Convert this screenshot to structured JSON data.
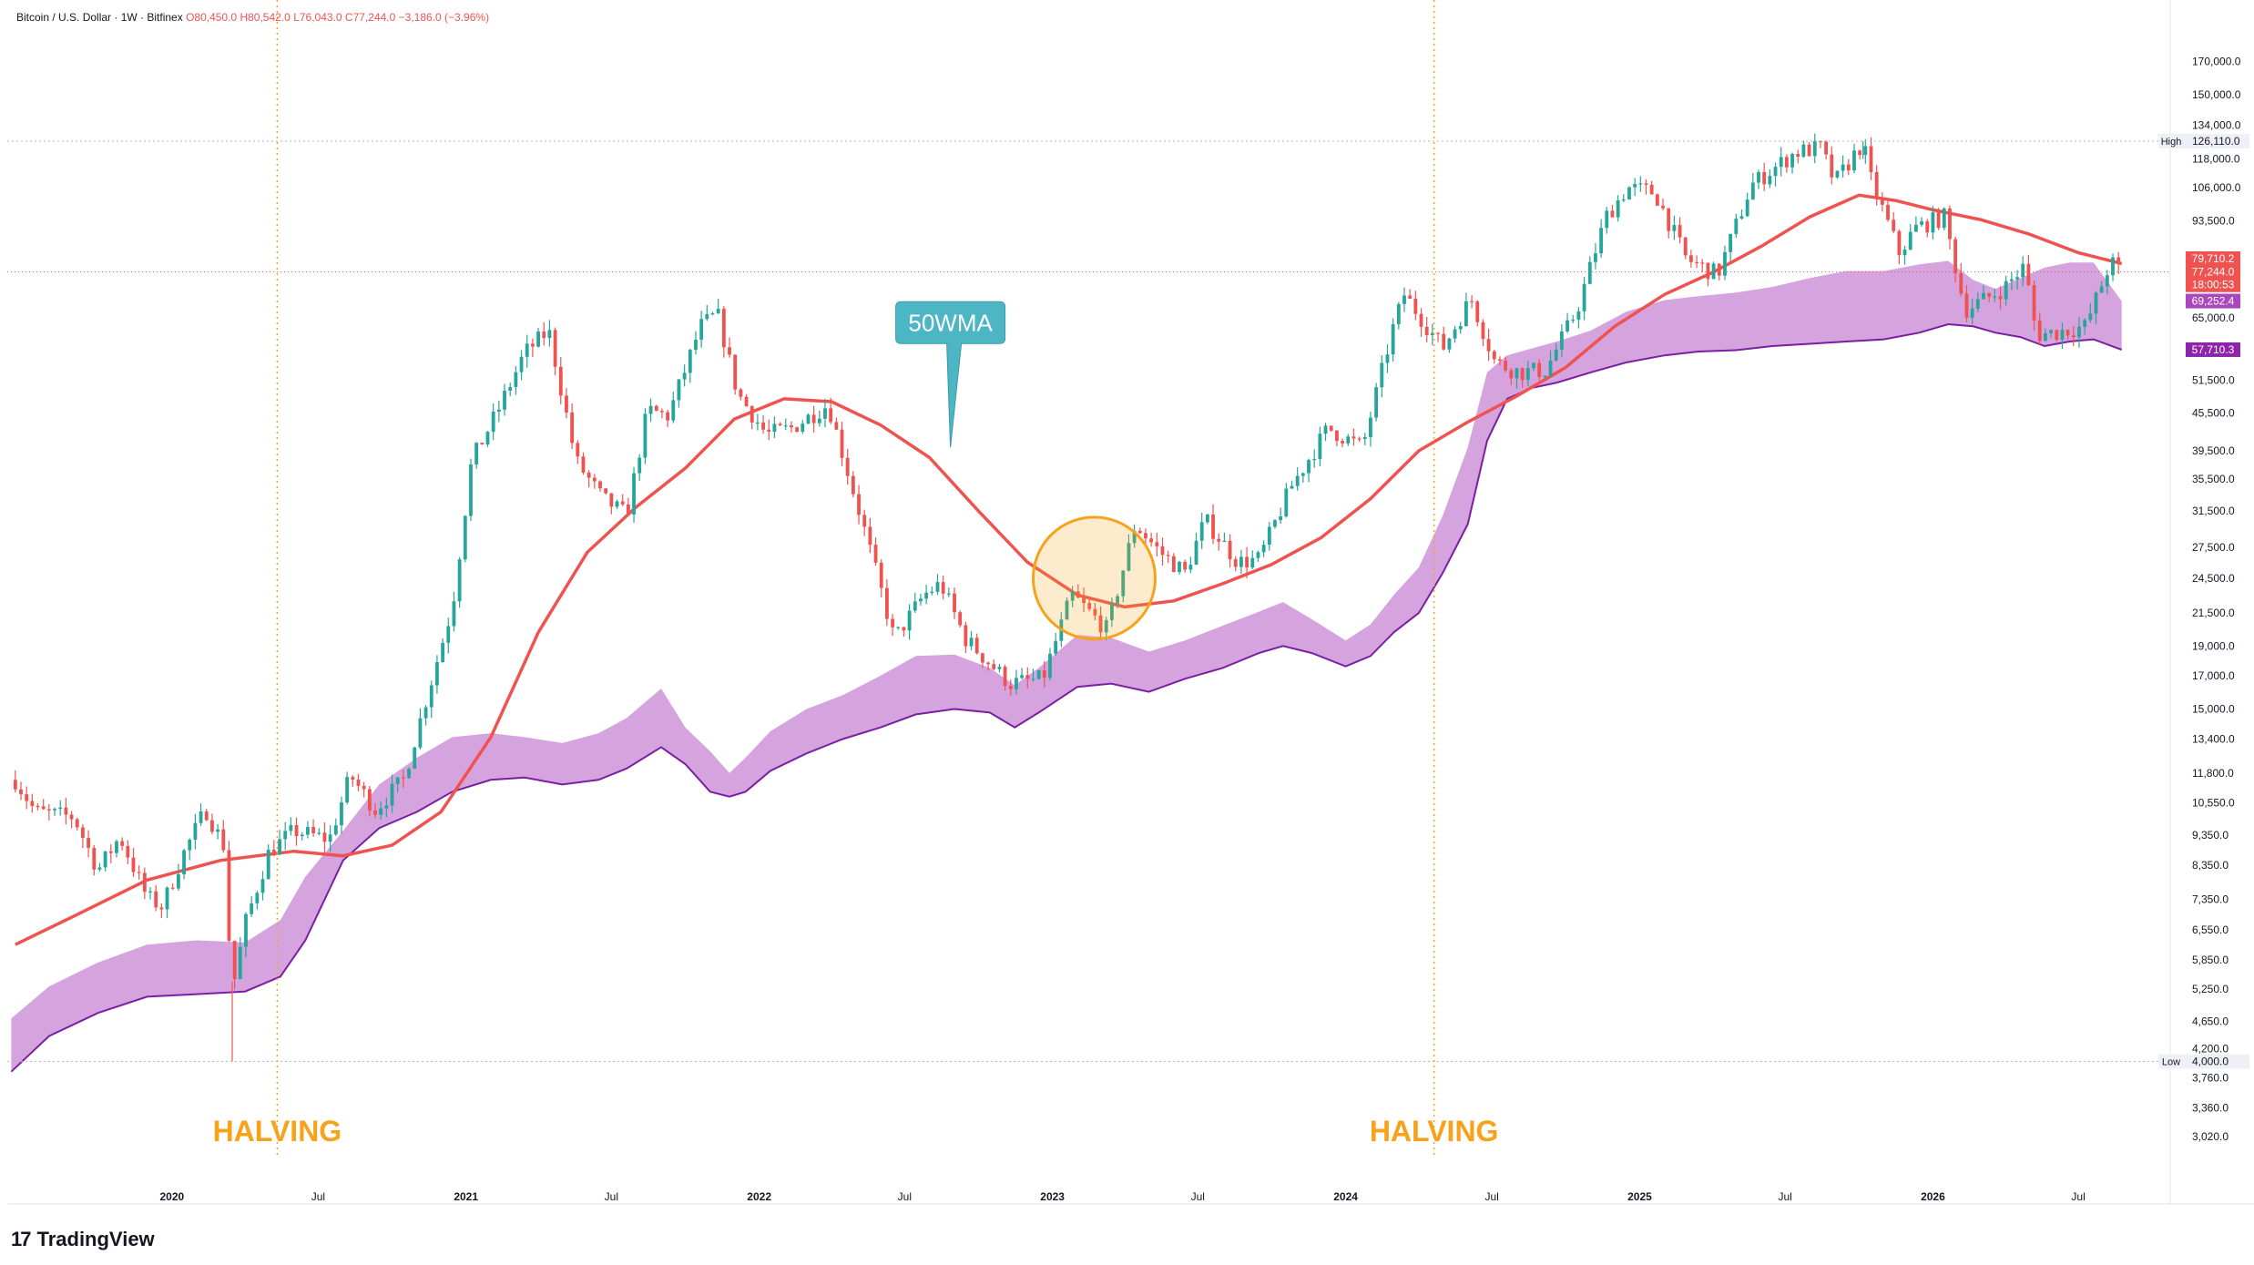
{
  "header": {
    "symbol": "Bitcoin / U.S. Dollar · 1W · Bitfinex",
    "open": "O80,450.0",
    "high": "H80,542.0",
    "low": "L76,043.0",
    "close": "C77,244.0",
    "change": "−3,186.0 (−3.96%)"
  },
  "brand": {
    "logo": "17",
    "name": "TradingView"
  },
  "colors": {
    "up": "#26a69a",
    "down": "#ef5350",
    "wma": "#ef5350",
    "band_fill": "#ce93d8",
    "band_edge": "#7b1fa2",
    "halving": "#f7a21b",
    "highlight": "#f7a21b",
    "callout": "#4db6c4"
  },
  "chart_data": {
    "type": "candlestick",
    "interval": "1W",
    "scale": "log",
    "ylim": [
      2800,
      200000
    ],
    "xlim": [
      "2019-06-10",
      "2026-10-20"
    ],
    "y_ticks": [
      "170,000.0",
      "150,000.0",
      "134,000.0",
      "118,000.0",
      "106,000.0",
      "93,500.0",
      "65,000.0",
      "51,500.0",
      "45,500.0",
      "39,500.0",
      "35,500.0",
      "31,500.0",
      "27,500.0",
      "24,500.0",
      "21,500.0",
      "19,000.0",
      "17,000.0",
      "15,000.0",
      "13,400.0",
      "11,800.0",
      "10,550.0",
      "9,350.0",
      "8,350.0",
      "7,350.0",
      "6,550.0",
      "5,850.0",
      "5,250.0",
      "4,650.0",
      "4,200.0",
      "3,760.0",
      "3,360.0",
      "3,020.0"
    ],
    "x_ticks": [
      {
        "date": "2020-01-01",
        "label": "2020",
        "bold": true
      },
      {
        "date": "2020-07-01",
        "label": "Jul",
        "bold": false
      },
      {
        "date": "2021-01-01",
        "label": "2021",
        "bold": true
      },
      {
        "date": "2021-07-01",
        "label": "Jul",
        "bold": false
      },
      {
        "date": "2022-01-01",
        "label": "2022",
        "bold": true
      },
      {
        "date": "2022-07-01",
        "label": "Jul",
        "bold": false
      },
      {
        "date": "2023-01-01",
        "label": "2023",
        "bold": true
      },
      {
        "date": "2023-07-01",
        "label": "Jul",
        "bold": false
      },
      {
        "date": "2024-01-01",
        "label": "2024",
        "bold": true
      },
      {
        "date": "2024-07-01",
        "label": "Jul",
        "bold": false
      },
      {
        "date": "2025-01-01",
        "label": "2025",
        "bold": true
      },
      {
        "date": "2025-07-01",
        "label": "Jul",
        "bold": false
      },
      {
        "date": "2026-01-01",
        "label": "2026",
        "bold": true
      },
      {
        "date": "2026-07-01",
        "label": "Jul",
        "bold": false
      }
    ],
    "price_path": [
      [
        "2019-06-20",
        11500
      ],
      [
        "2019-07-15",
        10200
      ],
      [
        "2019-09-01",
        10000
      ],
      [
        "2019-10-01",
        8200
      ],
      [
        "2019-10-28",
        9300
      ],
      [
        "2019-12-01",
        7400
      ],
      [
        "2019-12-20",
        7150
      ],
      [
        "2020-01-15",
        8700
      ],
      [
        "2020-02-12",
        10300
      ],
      [
        "2020-03-05",
        9000
      ],
      [
        "2020-03-16",
        5200
      ],
      [
        "2020-04-01",
        6700
      ],
      [
        "2020-05-01",
        8800
      ],
      [
        "2020-06-01",
        9500
      ],
      [
        "2020-07-15",
        9200
      ],
      [
        "2020-08-10",
        11700
      ],
      [
        "2020-09-10",
        10300
      ],
      [
        "2020-10-15",
        11500
      ],
      [
        "2020-11-15",
        16000
      ],
      [
        "2020-12-15",
        22000
      ],
      [
        "2021-01-08",
        38000
      ],
      [
        "2021-02-10",
        46000
      ],
      [
        "2021-03-15",
        57000
      ],
      [
        "2021-04-14",
        62000
      ],
      [
        "2021-05-18",
        38000
      ],
      [
        "2021-06-20",
        33000
      ],
      [
        "2021-07-20",
        31000
      ],
      [
        "2021-08-15",
        46000
      ],
      [
        "2021-09-10",
        45000
      ],
      [
        "2021-10-20",
        63000
      ],
      [
        "2021-11-10",
        66000
      ],
      [
        "2021-12-05",
        49000
      ],
      [
        "2022-01-10",
        42000
      ],
      [
        "2022-02-10",
        43000
      ],
      [
        "2022-03-28",
        47000
      ],
      [
        "2022-05-10",
        30000
      ],
      [
        "2022-06-18",
        19500
      ],
      [
        "2022-07-25",
        23000
      ],
      [
        "2022-08-15",
        24000
      ],
      [
        "2022-09-15",
        19500
      ],
      [
        "2022-11-09",
        16500
      ],
      [
        "2022-12-20",
        16800
      ],
      [
        "2023-01-25",
        23000
      ],
      [
        "2023-03-10",
        20200
      ],
      [
        "2023-04-14",
        30000
      ],
      [
        "2023-05-15",
        27000
      ],
      [
        "2023-06-15",
        25000
      ],
      [
        "2023-07-10",
        30500
      ],
      [
        "2023-08-20",
        26000
      ],
      [
        "2023-09-15",
        26300
      ],
      [
        "2023-10-25",
        34500
      ],
      [
        "2023-12-10",
        43000
      ],
      [
        "2024-01-22",
        40000
      ],
      [
        "2024-02-28",
        62000
      ],
      [
        "2024-03-14",
        71000
      ],
      [
        "2024-05-01",
        58000
      ],
      [
        "2024-06-05",
        70000
      ],
      [
        "2024-07-05",
        55000
      ],
      [
        "2024-08-05",
        53000
      ],
      [
        "2024-09-06",
        53500
      ],
      [
        "2024-10-15",
        67000
      ],
      [
        "2024-11-20",
        95000
      ],
      [
        "2024-12-17",
        106000
      ],
      [
        "2025-01-20",
        104000
      ],
      [
        "2025-02-28",
        81000
      ],
      [
        "2025-04-08",
        76500
      ],
      [
        "2025-05-20",
        107000
      ],
      [
        "2025-07-14",
        121000
      ],
      [
        "2025-08-14",
        123000
      ],
      [
        "2025-09-01",
        108000
      ],
      [
        "2025-10-06",
        125500
      ],
      [
        "2025-10-15",
        110000
      ],
      [
        "2025-11-20",
        83000
      ],
      [
        "2025-12-10",
        91000
      ],
      [
        "2026-01-15",
        95000
      ],
      [
        "2026-02-10",
        67000
      ],
      [
        "2026-03-10",
        70000
      ],
      [
        "2026-04-01",
        73000
      ],
      [
        "2026-04-25",
        79000
      ],
      [
        "2026-05-10",
        61000
      ],
      [
        "2026-06-01",
        61500
      ],
      [
        "2026-07-10",
        63000
      ],
      [
        "2026-08-10",
        80200
      ],
      [
        "2026-08-24",
        77244
      ]
    ],
    "wma_path": [
      [
        "2019-06-20",
        6200
      ],
      [
        "2019-09-01",
        6900
      ],
      [
        "2019-12-01",
        7900
      ],
      [
        "2020-03-01",
        8500
      ],
      [
        "2020-06-01",
        8800
      ],
      [
        "2020-08-01",
        8650
      ],
      [
        "2020-10-01",
        9000
      ],
      [
        "2020-12-01",
        10200
      ],
      [
        "2021-02-01",
        13500
      ],
      [
        "2021-04-01",
        20000
      ],
      [
        "2021-06-01",
        27000
      ],
      [
        "2021-08-01",
        32000
      ],
      [
        "2021-10-01",
        37000
      ],
      [
        "2021-12-01",
        44500
      ],
      [
        "2022-02-01",
        48000
      ],
      [
        "2022-04-01",
        47500
      ],
      [
        "2022-06-01",
        43500
      ],
      [
        "2022-08-01",
        38500
      ],
      [
        "2022-10-01",
        31500
      ],
      [
        "2022-12-01",
        26000
      ],
      [
        "2023-02-01",
        23000
      ],
      [
        "2023-04-01",
        22000
      ],
      [
        "2023-06-01",
        22500
      ],
      [
        "2023-08-01",
        24000
      ],
      [
        "2023-10-01",
        25800
      ],
      [
        "2023-12-01",
        28500
      ],
      [
        "2024-02-01",
        33000
      ],
      [
        "2024-04-01",
        39500
      ],
      [
        "2024-06-01",
        44000
      ],
      [
        "2024-08-01",
        48500
      ],
      [
        "2024-10-01",
        54000
      ],
      [
        "2024-12-01",
        63000
      ],
      [
        "2025-02-01",
        71000
      ],
      [
        "2025-04-01",
        77000
      ],
      [
        "2025-06-01",
        85000
      ],
      [
        "2025-08-01",
        95000
      ],
      [
        "2025-10-01",
        103000
      ],
      [
        "2025-11-15",
        101000
      ],
      [
        "2026-01-01",
        97500
      ],
      [
        "2026-03-01",
        94000
      ],
      [
        "2026-05-01",
        89000
      ],
      [
        "2026-07-01",
        83000
      ],
      [
        "2026-08-24",
        79710
      ]
    ],
    "band_path": [
      [
        "2019-06-15",
        4700,
        3850
      ],
      [
        "2019-08-01",
        5300,
        4400
      ],
      [
        "2019-10-01",
        5800,
        4800
      ],
      [
        "2019-12-01",
        6200,
        5100
      ],
      [
        "2020-02-01",
        6300,
        5150
      ],
      [
        "2020-04-01",
        6250,
        5200
      ],
      [
        "2020-05-15",
        6800,
        5500
      ],
      [
        "2020-06-15",
        8000,
        6300
      ],
      [
        "2020-08-01",
        9500,
        8500
      ],
      [
        "2020-09-15",
        11300,
        9600
      ],
      [
        "2020-11-01",
        12500,
        10200
      ],
      [
        "2020-12-15",
        13500,
        11000
      ],
      [
        "2021-02-01",
        13700,
        11500
      ],
      [
        "2021-03-15",
        13500,
        11600
      ],
      [
        "2021-05-01",
        13200,
        11300
      ],
      [
        "2021-06-15",
        13700,
        11500
      ],
      [
        "2021-07-20",
        14500,
        12000
      ],
      [
        "2021-09-01",
        16200,
        13000
      ],
      [
        "2021-10-01",
        14000,
        12200
      ],
      [
        "2021-11-01",
        12800,
        11000
      ],
      [
        "2021-11-25",
        11800,
        10800
      ],
      [
        "2021-12-15",
        12500,
        11000
      ],
      [
        "2022-01-15",
        13800,
        11900
      ],
      [
        "2022-03-01",
        15000,
        12700
      ],
      [
        "2022-04-15",
        15800,
        13400
      ],
      [
        "2022-06-01",
        17000,
        14000
      ],
      [
        "2022-07-15",
        18300,
        14700
      ],
      [
        "2022-09-01",
        18400,
        15000
      ],
      [
        "2022-10-15",
        17500,
        14800
      ],
      [
        "2022-11-15",
        16400,
        14000
      ],
      [
        "2022-12-15",
        17500,
        14800
      ],
      [
        "2023-02-01",
        19800,
        16300
      ],
      [
        "2023-03-15",
        19600,
        16500
      ],
      [
        "2023-05-01",
        18600,
        16000
      ],
      [
        "2023-06-15",
        19400,
        16800
      ],
      [
        "2023-08-01",
        20500,
        17500
      ],
      [
        "2023-09-15",
        21600,
        18500
      ],
      [
        "2023-10-15",
        22400,
        19000
      ],
      [
        "2023-11-20",
        21000,
        18500
      ],
      [
        "2024-01-01",
        19400,
        17600
      ],
      [
        "2024-02-01",
        20600,
        18300
      ],
      [
        "2024-03-01",
        23000,
        20000
      ],
      [
        "2024-04-01",
        25500,
        21500
      ],
      [
        "2024-05-01",
        31000,
        25000
      ],
      [
        "2024-06-01",
        40000,
        30000
      ],
      [
        "2024-06-25",
        53000,
        41000
      ],
      [
        "2024-07-20",
        56500,
        48000
      ],
      [
        "2024-08-20",
        58000,
        50000
      ],
      [
        "2024-09-20",
        59500,
        51000
      ],
      [
        "2024-11-01",
        62000,
        53000
      ],
      [
        "2024-12-15",
        66500,
        55000
      ],
      [
        "2025-02-01",
        69500,
        56500
      ],
      [
        "2025-03-15",
        70500,
        57300
      ],
      [
        "2025-05-01",
        71500,
        57600
      ],
      [
        "2025-06-15",
        73000,
        58500
      ],
      [
        "2025-08-01",
        75500,
        59000
      ],
      [
        "2025-09-15",
        77500,
        59500
      ],
      [
        "2025-11-01",
        77500,
        60000
      ],
      [
        "2025-12-15",
        79500,
        61500
      ],
      [
        "2026-01-20",
        80500,
        63500
      ],
      [
        "2026-02-20",
        75000,
        63000
      ],
      [
        "2026-03-20",
        72500,
        61500
      ],
      [
        "2026-04-20",
        75500,
        60500
      ],
      [
        "2026-05-20",
        78500,
        58500
      ],
      [
        "2026-06-20",
        80000,
        59500
      ],
      [
        "2026-07-20",
        80000,
        60000
      ],
      [
        "2026-08-24",
        69252,
        57710
      ]
    ],
    "halvings": [
      {
        "date": "2020-05-11",
        "label": "HALVING"
      },
      {
        "date": "2024-04-20",
        "label": "HALVING"
      }
    ],
    "annotation": {
      "text": "50WMA",
      "target_date": "2022-08-27",
      "target_price": 40000
    },
    "highlight_circle": {
      "date": "2023-02-22",
      "price": 24500
    },
    "high_marker": {
      "label": "High",
      "value": "126,110.0",
      "price": 126110
    },
    "low_marker": {
      "label": "Low",
      "value": "4,000.0",
      "price": 4000
    },
    "price_labels": [
      {
        "text": "79,710.2",
        "price": 81200,
        "color": "#ef5350"
      },
      {
        "text": "77,244.0",
        "price": 77244,
        "color": "#ef5350"
      },
      {
        "text": "18:00:53",
        "price": 73600,
        "color": "#ef5350"
      },
      {
        "text": "69,252.4",
        "price": 69252,
        "color": "#ab47bc"
      },
      {
        "text": "57,710.3",
        "price": 57710,
        "color": "#8e24aa"
      }
    ],
    "last_price_line": 77244
  }
}
